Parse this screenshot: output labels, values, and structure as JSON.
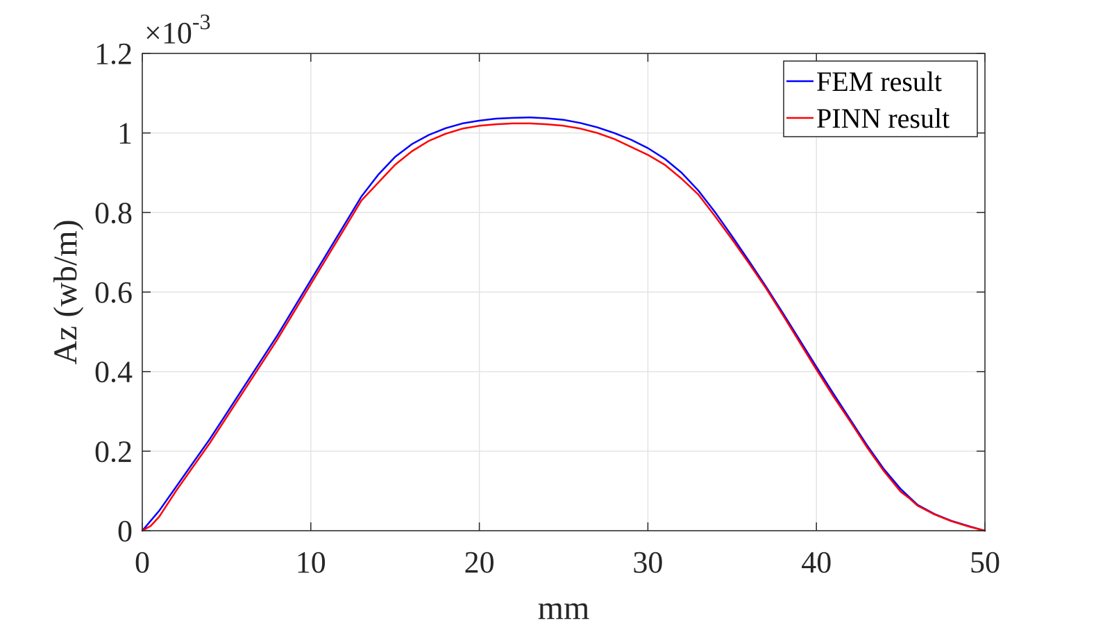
{
  "chart_data": {
    "type": "line",
    "xlabel": "mm",
    "ylabel": "Az (wb/m)",
    "y_exponent_base": "×10",
    "y_exponent_power": "-3",
    "xlim": [
      0,
      50
    ],
    "ylim": [
      0,
      1.2
    ],
    "xticks": [
      0,
      10,
      20,
      30,
      40,
      50
    ],
    "xtick_labels": [
      "0",
      "10",
      "20",
      "30",
      "40",
      "50"
    ],
    "yticks": [
      0,
      0.2,
      0.4,
      0.6,
      0.8,
      1.0,
      1.2
    ],
    "ytick_labels": [
      "0",
      "0.2",
      "0.4",
      "0.6",
      "0.8",
      "1",
      "1.2"
    ],
    "grid": true,
    "legend_position": "top-right",
    "series": [
      {
        "name": "FEM result",
        "color": "#0000ff",
        "x": [
          0,
          0.5,
          1,
          2,
          3,
          4,
          5,
          6,
          7,
          8,
          9,
          10,
          11,
          12,
          13,
          14,
          15,
          16,
          17,
          18,
          19,
          20,
          21,
          22,
          23,
          24,
          25,
          26,
          27,
          28,
          29,
          30,
          31,
          32,
          33,
          34,
          35,
          36,
          37,
          38,
          39,
          40,
          41,
          42,
          43,
          44,
          45,
          45.5,
          46,
          47,
          48,
          49,
          50
        ],
        "y": [
          0,
          0.025,
          0.05,
          0.11,
          0.17,
          0.23,
          0.295,
          0.36,
          0.425,
          0.49,
          0.56,
          0.63,
          0.7,
          0.77,
          0.84,
          0.895,
          0.94,
          0.972,
          0.995,
          1.012,
          1.024,
          1.031,
          1.036,
          1.038,
          1.039,
          1.037,
          1.033,
          1.025,
          1.014,
          1.0,
          0.983,
          0.962,
          0.935,
          0.9,
          0.855,
          0.8,
          0.74,
          0.678,
          0.614,
          0.548,
          0.48,
          0.412,
          0.345,
          0.28,
          0.215,
          0.155,
          0.105,
          0.085,
          0.065,
          0.042,
          0.025,
          0.012,
          0
        ]
      },
      {
        "name": "PINN result",
        "color": "#ff0000",
        "x": [
          0,
          0.5,
          1,
          2,
          3,
          4,
          5,
          6,
          7,
          8,
          9,
          10,
          11,
          12,
          13,
          14,
          15,
          16,
          17,
          18,
          19,
          20,
          21,
          22,
          23,
          24,
          25,
          26,
          27,
          28,
          29,
          30,
          31,
          32,
          33,
          34,
          35,
          36,
          37,
          38,
          39,
          40,
          41,
          42,
          43,
          44,
          45,
          45.5,
          46,
          47,
          48,
          49,
          50
        ],
        "y": [
          0,
          0.012,
          0.035,
          0.1,
          0.16,
          0.22,
          0.285,
          0.35,
          0.415,
          0.48,
          0.55,
          0.62,
          0.69,
          0.76,
          0.83,
          0.875,
          0.92,
          0.954,
          0.98,
          0.998,
          1.011,
          1.018,
          1.022,
          1.024,
          1.024,
          1.022,
          1.018,
          1.011,
          1.0,
          0.985,
          0.965,
          0.945,
          0.92,
          0.885,
          0.845,
          0.79,
          0.732,
          0.672,
          0.61,
          0.543,
          0.474,
          0.405,
          0.338,
          0.275,
          0.21,
          0.15,
          0.098,
          0.082,
          0.063,
          0.041,
          0.024,
          0.011,
          0
        ]
      }
    ]
  }
}
